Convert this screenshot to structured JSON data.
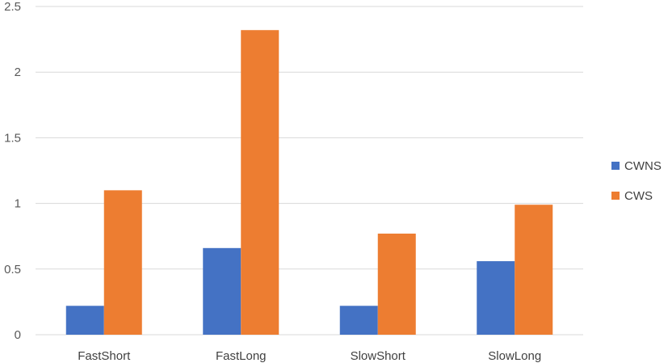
{
  "chart_data": {
    "type": "bar",
    "categories": [
      "FastShort",
      "FastLong",
      "SlowShort",
      "SlowLong"
    ],
    "series": [
      {
        "name": "CWNS",
        "values": [
          0.22,
          0.66,
          0.22,
          0.56
        ],
        "color": "#4472c4"
      },
      {
        "name": "CWS",
        "values": [
          1.1,
          2.32,
          0.77,
          0.99
        ],
        "color": "#ed7d31"
      }
    ],
    "yticks": [
      "0",
      "0.5",
      "1",
      "1.5",
      "2",
      "2.5"
    ],
    "ylim": [
      0,
      2.5
    ],
    "grid": true,
    "legend_position": "right",
    "gridline_color": "#d9d9d9"
  }
}
